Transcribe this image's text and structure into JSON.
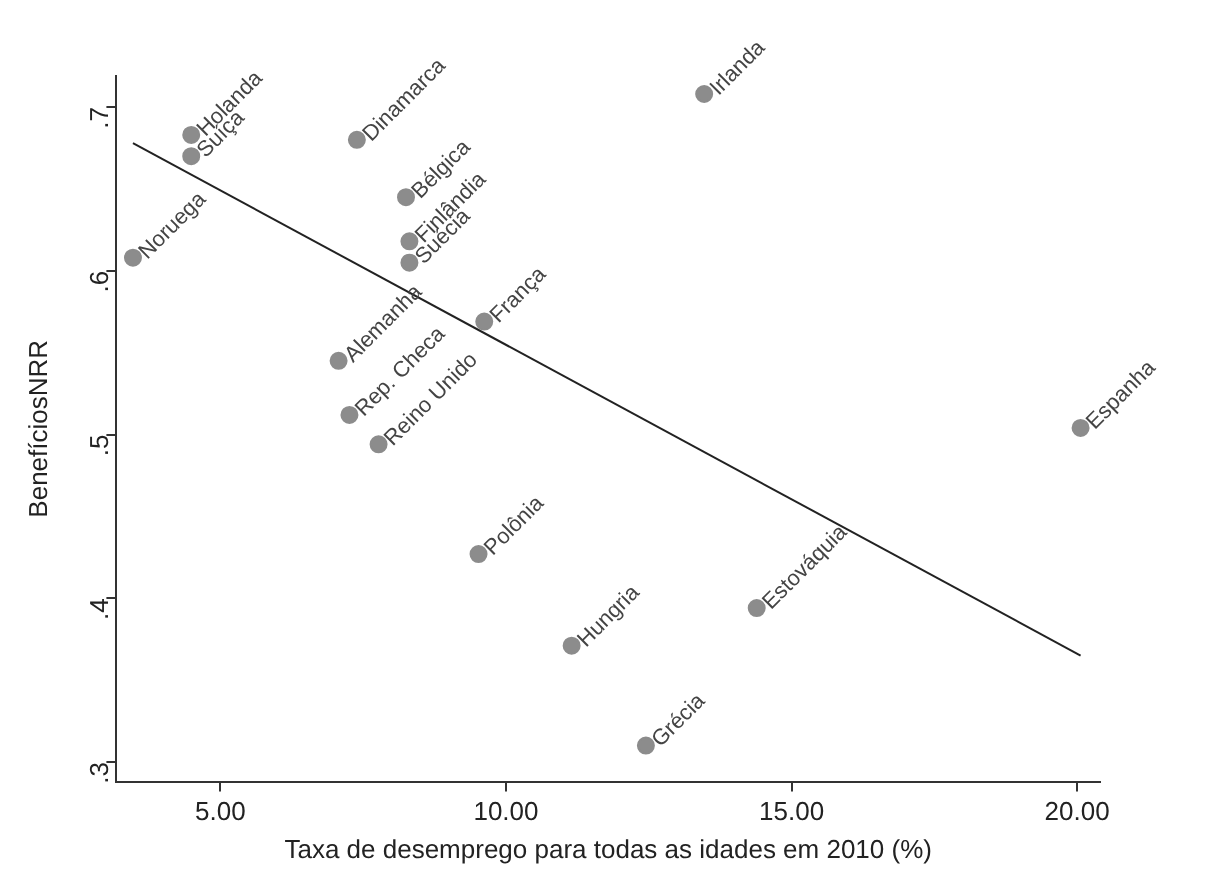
{
  "chart_data": {
    "type": "scatter",
    "xlabel": "Taxa de desemprego para todas as idades em 2010 (%)",
    "ylabel": "BenefíciosNRR",
    "x": [
      4.49,
      4.49,
      3.47,
      7.39,
      13.47,
      8.25,
      8.31,
      8.31,
      9.62,
      7.07,
      7.26,
      7.77,
      9.52,
      11.15,
      14.39,
      12.45,
      20.06
    ],
    "series": [
      {
        "color": "#8c8c8c",
        "marker": "circle",
        "values": [
          0.683,
          0.67,
          0.608,
          0.68,
          0.708,
          0.645,
          0.618,
          0.605,
          0.569,
          0.545,
          0.512,
          0.494,
          0.427,
          0.371,
          0.394,
          0.31,
          0.504
        ]
      },
      {
        "type": "line",
        "color": "#222222",
        "marker": "none",
        "x": [
          3.47,
          20.06
        ],
        "values": [
          0.678,
          0.365
        ]
      }
    ],
    "annotations": [
      {
        "text": "Holanda",
        "x": 4.49,
        "y": 0.683
      },
      {
        "text": "Suíça",
        "x": 4.49,
        "y": 0.67
      },
      {
        "text": "Noruega",
        "x": 3.47,
        "y": 0.608
      },
      {
        "text": "Dinamarca",
        "x": 7.39,
        "y": 0.68
      },
      {
        "text": "Irlanda",
        "x": 13.47,
        "y": 0.708
      },
      {
        "text": "Bélgica",
        "x": 8.25,
        "y": 0.645
      },
      {
        "text": "Finlândia",
        "x": 8.31,
        "y": 0.618
      },
      {
        "text": "Suécia",
        "x": 8.31,
        "y": 0.605
      },
      {
        "text": "França",
        "x": 9.62,
        "y": 0.569
      },
      {
        "text": "Alemanha",
        "x": 7.07,
        "y": 0.545
      },
      {
        "text": "Rep. Checa",
        "x": 7.26,
        "y": 0.512
      },
      {
        "text": "Reino Unido",
        "x": 7.77,
        "y": 0.494
      },
      {
        "text": "Polônia",
        "x": 9.52,
        "y": 0.427
      },
      {
        "text": "Hungria",
        "x": 11.15,
        "y": 0.371
      },
      {
        "text": "Estováquia",
        "x": 14.39,
        "y": 0.394
      },
      {
        "text": "Grécia",
        "x": 12.45,
        "y": 0.31
      },
      {
        "text": "Espanha",
        "x": 20.06,
        "y": 0.504
      }
    ],
    "xlim": [
      3.18,
      20.4
    ],
    "ylim": [
      0.288,
      0.719
    ],
    "xticks": [
      {
        "value": 5,
        "label": "5.00"
      },
      {
        "value": 10,
        "label": "10.00"
      },
      {
        "value": 15,
        "label": "15.00"
      },
      {
        "value": 20,
        "label": "20.00"
      }
    ],
    "yticks": [
      {
        "value": 0.3,
        "label": ".3"
      },
      {
        "value": 0.4,
        "label": ".4"
      },
      {
        "value": 0.5,
        "label": ".5"
      },
      {
        "value": 0.6,
        "label": ".6"
      },
      {
        "value": 0.7,
        "label": ".7"
      }
    ],
    "grid": false,
    "legend": false
  }
}
